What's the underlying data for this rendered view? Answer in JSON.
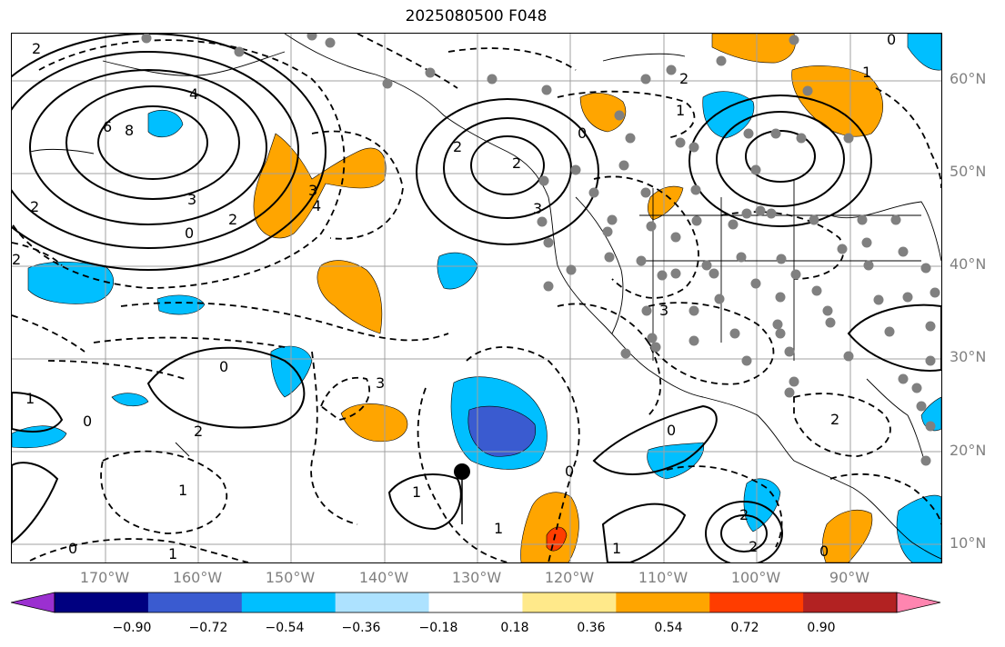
{
  "title": "2025080500 F048",
  "lat_labels": [
    "60°N",
    "50°N",
    "40°N",
    "30°N",
    "20°N",
    "10°N"
  ],
  "lon_labels": [
    "170°W",
    "160°W",
    "150°W",
    "140°W",
    "130°W",
    "120°W",
    "110°W",
    "100°W",
    "90°W"
  ],
  "colorbar": {
    "ticks": [
      "−0.90",
      "−0.72",
      "−0.54",
      "−0.36",
      "−0.18",
      "0.18",
      "0.36",
      "0.54",
      "0.72",
      "0.90"
    ],
    "colors": [
      "#9b30d0",
      "#000080",
      "#3a5bd0",
      "#00bfff",
      "#ade2ff",
      "#ffffff",
      "#ffe98a",
      "#ffa500",
      "#ff3d00",
      "#b22222",
      "#ff85b0"
    ]
  },
  "contour_labels": [
    "2",
    "4",
    "6",
    "8",
    "2",
    "0",
    "3",
    "2",
    "4",
    "3",
    "2",
    "0",
    "1",
    "0",
    "2",
    "1",
    "3",
    "1",
    "2",
    "3",
    "2",
    "0",
    "1",
    "0",
    "1",
    "2",
    "3",
    "2",
    "1",
    "0",
    "2",
    "0",
    "1",
    "2",
    "0",
    "1",
    "0"
  ]
}
